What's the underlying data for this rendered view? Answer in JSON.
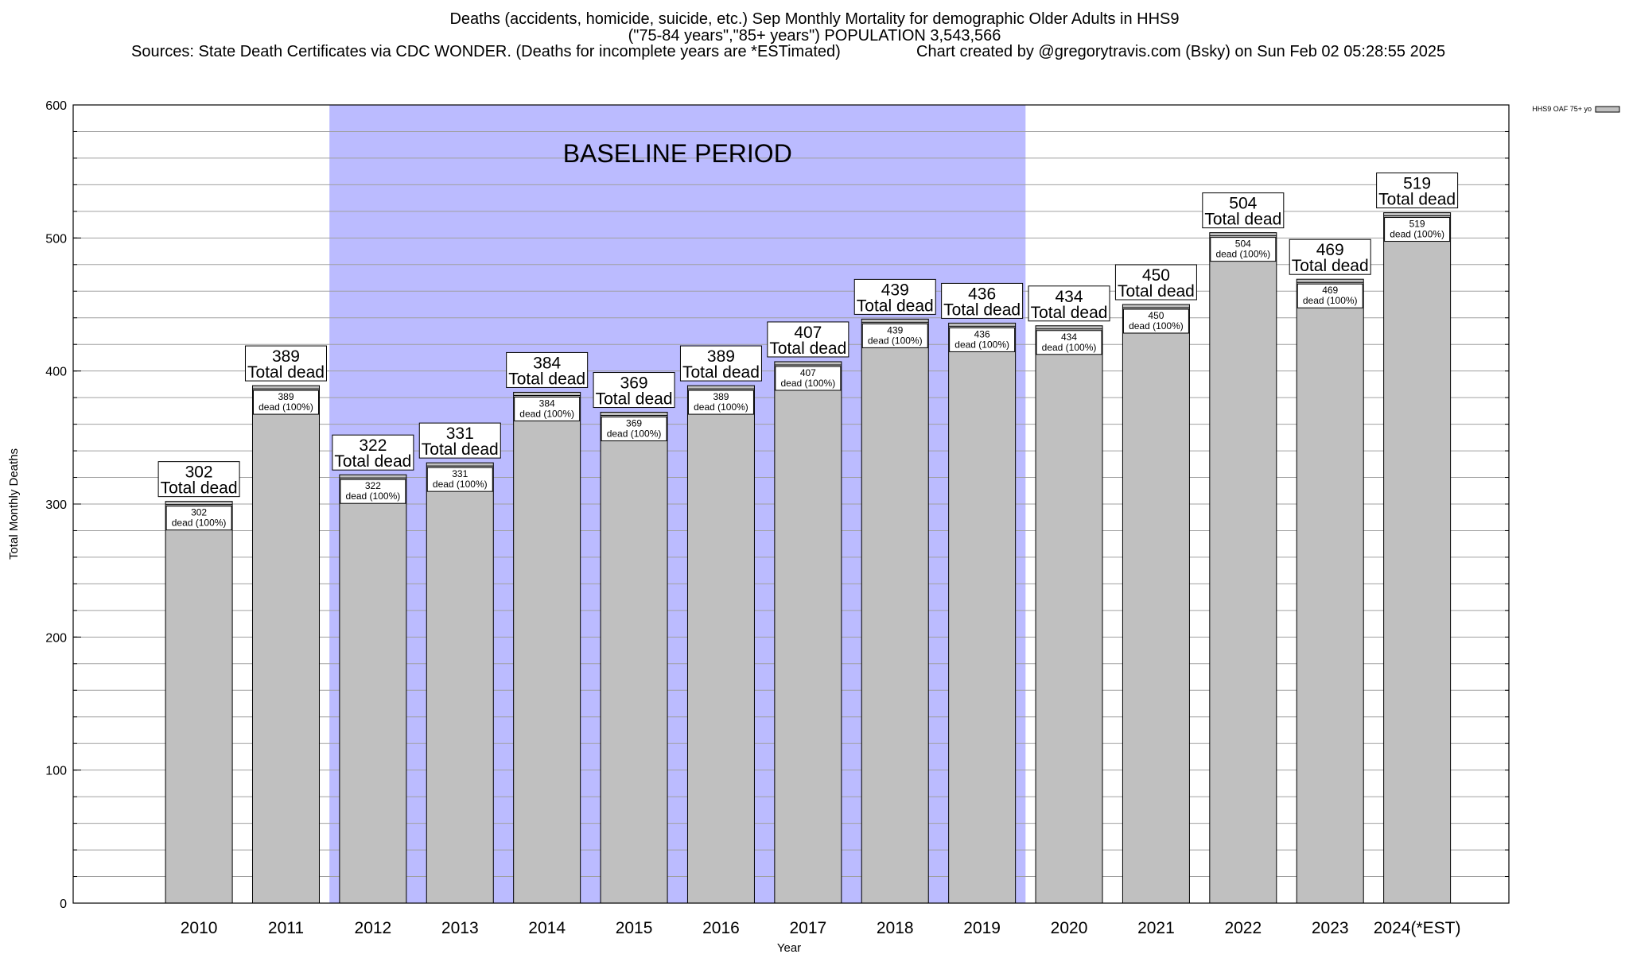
{
  "header": {
    "title_line1": "Deaths (accidents, homicide, suicide, etc.) Sep Monthly Mortality for demographic Older Adults in HHS9",
    "title_line2": "(\"75-84 years\",\"85+ years\") POPULATION 3,543,566",
    "sources": "Sources: State Death Certificates via CDC WONDER. (Deaths for incomplete years are *ESTimated)",
    "credit": "Chart created by @gregorytravis.com (Bsky) on Sun Feb 02 05:28:55 2025"
  },
  "chart_data": {
    "type": "bar",
    "xlabel": "Year",
    "ylabel": "Total Monthly Deaths",
    "ylim": [
      0,
      600
    ],
    "yticks": [
      0,
      100,
      200,
      300,
      400,
      500,
      600
    ],
    "grid": true,
    "legend": {
      "entry": "HHS9 OAF 75+ yo",
      "placement": "top-right-outside"
    },
    "bar_color": "#c0c0c0",
    "shade_color": "#bbbbff",
    "baseline_period": {
      "label": "BASELINE PERIOD",
      "from": "2012",
      "to": "2019"
    },
    "categories": [
      "2010",
      "2011",
      "2012",
      "2013",
      "2014",
      "2015",
      "2016",
      "2017",
      "2018",
      "2019",
      "2020",
      "2021",
      "2022",
      "2023",
      "2024(*EST)"
    ],
    "series": [
      {
        "name": "HHS9 OAF 75+ yo",
        "values": [
          302,
          389,
          322,
          331,
          384,
          369,
          389,
          407,
          439,
          436,
          434,
          450,
          504,
          469,
          519
        ]
      }
    ],
    "total_label": "Total dead",
    "inner_label": "dead (100%)"
  }
}
